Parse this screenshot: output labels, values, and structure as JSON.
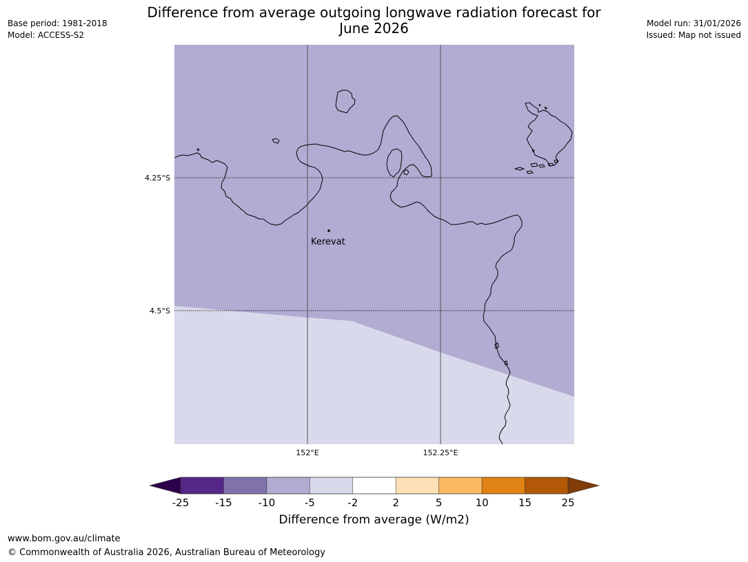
{
  "title": "Difference from average outgoing longwave radiation forecast for June 2026",
  "title_lines": [
    "Difference from average outgoing longwave radiation forecast for",
    "June 2026"
  ],
  "meta_left": {
    "base_period": "Base period: 1981-2018",
    "model": "Model: ACCESS-S2"
  },
  "meta_right": {
    "model_run": "Model run: 31/01/2026",
    "issued": "Issued: Map not issued"
  },
  "map": {
    "lat_labels": [
      "4.25°S",
      "4.5°S"
    ],
    "lon_labels": [
      "152°E",
      "152.25°E"
    ],
    "place": {
      "name": "Kerevat"
    },
    "colors": {
      "band_minus_5_to_minus_10": "#b2abd2",
      "band_minus_2_to_minus_5": "#d8daeb",
      "coastline": "#000000"
    }
  },
  "colorbar": {
    "title": "Difference from average (W/m2)",
    "ticks": [
      "-25",
      "-15",
      "-10",
      "-5",
      "-2",
      "2",
      "5",
      "10",
      "15",
      "25"
    ],
    "under_color": "#2d004b",
    "over_color": "#7f3b08",
    "colors": [
      "#542788",
      "#8073ac",
      "#b2abd2",
      "#d8daeb",
      "#ffffff",
      "#fee0b6",
      "#fdb863",
      "#e08214",
      "#b35806"
    ]
  },
  "footer": {
    "url": "www.bom.gov.au/climate",
    "copyright": "© Commonwealth of Australia 2026, Australian Bureau of Meteorology"
  }
}
